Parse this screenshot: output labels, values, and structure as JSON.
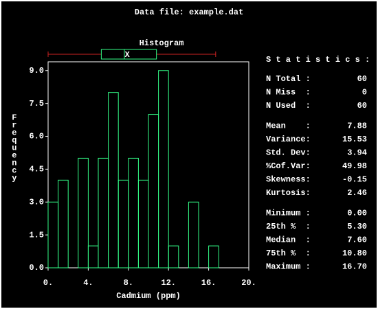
{
  "header": {
    "title": "Data file: example.dat"
  },
  "chart_data": {
    "type": "histogram",
    "title": "Histogram",
    "xlabel": "Cadmium (ppm)",
    "ylabel": "Frequency",
    "bins": [
      0,
      1,
      2,
      3,
      4,
      5,
      6,
      7,
      8,
      9,
      10,
      11,
      12,
      13,
      14,
      15,
      16,
      17
    ],
    "values": [
      3,
      4,
      0,
      5,
      1,
      5,
      8,
      4,
      5,
      4,
      7,
      9,
      1,
      0,
      3,
      0,
      1
    ],
    "color": "#33ff88",
    "xlim": [
      0,
      20
    ],
    "xticks": [
      {
        "value": 0,
        "label": "0."
      },
      {
        "value": 4,
        "label": "4."
      },
      {
        "value": 8,
        "label": "8."
      },
      {
        "value": 12,
        "label": "12."
      },
      {
        "value": 16,
        "label": "16."
      },
      {
        "value": 20,
        "label": "20."
      }
    ],
    "ylim": [
      0,
      9.4
    ],
    "yticks": [
      {
        "value": 0,
        "label": "0.0"
      },
      1.5,
      {
        "value": 3,
        "label": "3.0"
      },
      4.5,
      {
        "value": 6,
        "label": "6.0"
      },
      7.5,
      {
        "value": 9,
        "label": "9.0"
      }
    ],
    "boxplot": {
      "min": 0,
      "q1": 5.3,
      "median": 7.6,
      "q3": 10.8,
      "max": 16.7,
      "mean": 7.88,
      "mean_marker": "X",
      "whisker_color": "#cc2222",
      "box_color": "#33ff88"
    }
  },
  "statistics": {
    "title": "S t a t i s t i c s :",
    "groups": [
      [
        {
          "label": "N Total :",
          "value": "60"
        },
        {
          "label": "N Miss  :",
          "value": "0"
        },
        {
          "label": "N Used  :",
          "value": "60"
        }
      ],
      [
        {
          "label": "Mean    :",
          "value": "7.88"
        },
        {
          "label": "Variance:",
          "value": "15.53"
        },
        {
          "label": "Std. Dev:",
          "value": "3.94"
        },
        {
          "label": "%Cof.Var:",
          "value": "49.98"
        },
        {
          "label": "Skewness:",
          "value": "-0.15"
        },
        {
          "label": "Kurtosis:",
          "value": "2.46"
        }
      ],
      [
        {
          "label": "Minimum :",
          "value": "0.00"
        },
        {
          "label": "25th %  :",
          "value": "5.30"
        },
        {
          "label": "Median  :",
          "value": "7.60"
        },
        {
          "label": "75th %  :",
          "value": "10.80"
        },
        {
          "label": "Maximum :",
          "value": "16.70"
        }
      ]
    ]
  }
}
